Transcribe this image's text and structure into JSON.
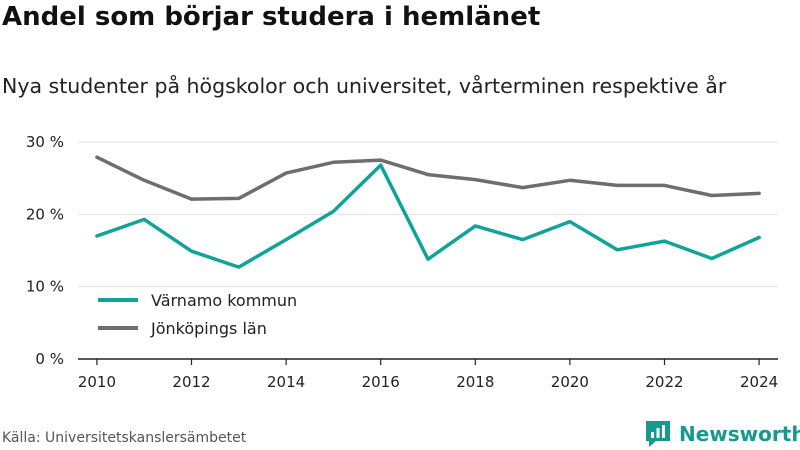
{
  "header": {
    "title": "Andel som börjar studera i hemlänet",
    "subtitle": "Nya studenter på högskolor och universitet, vårterminen respektive år"
  },
  "footer": {
    "source": "Källa: Universitetskanslersämbetet",
    "brand": "Newsworthy",
    "brand_icon": "newsworthy-logo-icon"
  },
  "colors": {
    "varnamo": "#0fa39a",
    "jonkoping": "#6d6d72",
    "grid": "#e3e3e3",
    "axis": "#222222",
    "brand": "#16998e"
  },
  "chart_data": {
    "type": "line",
    "x": [
      2010,
      2011,
      2012,
      2013,
      2014,
      2015,
      2016,
      2017,
      2018,
      2019,
      2020,
      2021,
      2022,
      2023,
      2024
    ],
    "xticks": [
      2010,
      2012,
      2014,
      2016,
      2018,
      2020,
      2022,
      2024
    ],
    "xtick_labels": [
      "2010",
      "2012",
      "2014",
      "2016",
      "2018",
      "2020",
      "2022",
      "2024"
    ],
    "yticks": [
      0,
      10,
      20,
      30
    ],
    "ytick_labels": [
      "0 %",
      "10 %",
      "20 %",
      "30 %"
    ],
    "ylim": [
      0,
      30
    ],
    "xlim": [
      2009.6,
      2024.4
    ],
    "grid": true,
    "legend_position": "lower-left",
    "series": [
      {
        "name": "Värnamo kommun",
        "color": "#0fa39a",
        "values": [
          17.0,
          19.3,
          14.9,
          12.7,
          16.5,
          20.4,
          26.8,
          13.8,
          18.4,
          16.5,
          19.0,
          15.1,
          16.3,
          13.9,
          16.8
        ]
      },
      {
        "name": "Jönköpings län",
        "color": "#6d6d72",
        "values": [
          27.9,
          24.7,
          22.1,
          22.2,
          25.7,
          27.2,
          27.5,
          25.5,
          24.8,
          23.7,
          24.7,
          24.0,
          24.0,
          22.6,
          22.9
        ]
      }
    ]
  }
}
